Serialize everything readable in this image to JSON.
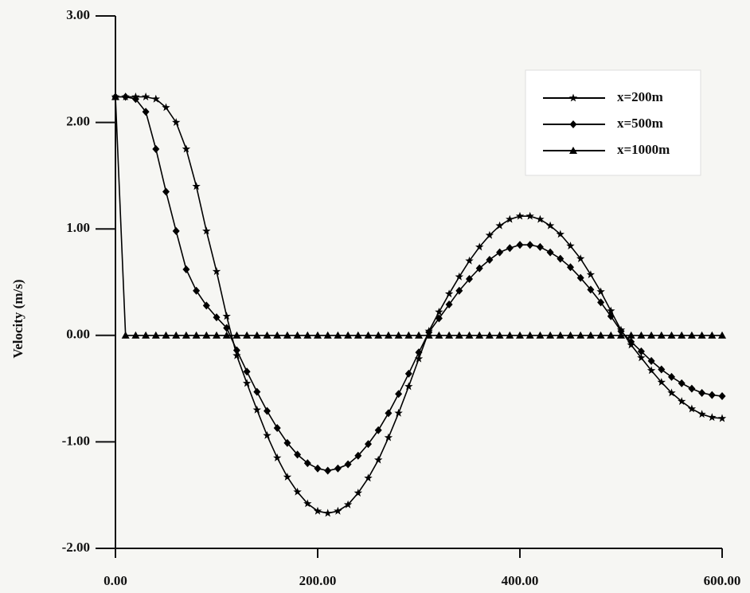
{
  "chart_data": {
    "type": "line",
    "y_label": "Velocity (m/s)",
    "x": [
      0,
      10,
      20,
      30,
      40,
      50,
      60,
      70,
      80,
      90,
      100,
      110,
      120,
      130,
      140,
      150,
      160,
      170,
      180,
      190,
      200,
      210,
      220,
      230,
      240,
      250,
      260,
      270,
      280,
      290,
      300,
      310,
      320,
      330,
      340,
      350,
      360,
      370,
      380,
      390,
      400,
      410,
      420,
      430,
      440,
      450,
      460,
      470,
      480,
      490,
      500,
      510,
      520,
      530,
      540,
      550,
      560,
      570,
      580,
      590,
      600
    ],
    "series": [
      {
        "name": "x=200m",
        "color": "#000000",
        "marker": "star",
        "values": [
          2.24,
          2.24,
          2.24,
          2.24,
          2.22,
          2.14,
          2.0,
          1.75,
          1.4,
          0.98,
          0.6,
          0.18,
          -0.19,
          -0.45,
          -0.7,
          -0.94,
          -1.15,
          -1.33,
          -1.47,
          -1.58,
          -1.65,
          -1.67,
          -1.65,
          -1.59,
          -1.48,
          -1.34,
          -1.17,
          -0.96,
          -0.73,
          -0.48,
          -0.22,
          0.04,
          0.22,
          0.39,
          0.55,
          0.7,
          0.83,
          0.94,
          1.03,
          1.09,
          1.12,
          1.12,
          1.09,
          1.03,
          0.95,
          0.84,
          0.72,
          0.57,
          0.41,
          0.23,
          0.05,
          -0.09,
          -0.21,
          -0.33,
          -0.44,
          -0.54,
          -0.62,
          -0.69,
          -0.74,
          -0.77,
          -0.78
        ]
      },
      {
        "name": "x=500m",
        "color": "#000000",
        "marker": "diamond",
        "values": [
          2.24,
          2.24,
          2.22,
          2.1,
          1.75,
          1.35,
          0.98,
          0.62,
          0.42,
          0.28,
          0.17,
          0.07,
          -0.14,
          -0.34,
          -0.53,
          -0.71,
          -0.87,
          -1.01,
          -1.12,
          -1.2,
          -1.25,
          -1.27,
          -1.25,
          -1.21,
          -1.13,
          -1.02,
          -0.89,
          -0.73,
          -0.55,
          -0.36,
          -0.16,
          0.03,
          0.16,
          0.29,
          0.42,
          0.53,
          0.63,
          0.71,
          0.78,
          0.82,
          0.85,
          0.85,
          0.83,
          0.78,
          0.72,
          0.64,
          0.54,
          0.43,
          0.31,
          0.18,
          0.04,
          -0.06,
          -0.15,
          -0.24,
          -0.32,
          -0.39,
          -0.45,
          -0.5,
          -0.54,
          -0.56,
          -0.57
        ]
      },
      {
        "name": "x=1000m",
        "color": "#000000",
        "marker": "triangle",
        "values": [
          2.24,
          0,
          0,
          0,
          0,
          0,
          0,
          0,
          0,
          0,
          0,
          0,
          0,
          0,
          0,
          0,
          0,
          0,
          0,
          0,
          0,
          0,
          0,
          0,
          0,
          0,
          0,
          0,
          0,
          0,
          0,
          0,
          0,
          0,
          0,
          0,
          0,
          0,
          0,
          0,
          0,
          0,
          0,
          0,
          0,
          0,
          0,
          0,
          0,
          0,
          0,
          0,
          0,
          0,
          0,
          0,
          0,
          0,
          0,
          0,
          0
        ]
      }
    ],
    "xlim": [
      0,
      600
    ],
    "xticks": [
      {
        "value": 0,
        "label": "0.00"
      },
      {
        "value": 200,
        "label": "200.00"
      },
      {
        "value": 400,
        "label": "400.00"
      },
      {
        "value": 600,
        "label": "600.00"
      }
    ],
    "ylim": [
      -2,
      3
    ],
    "yticks": [
      {
        "value": -2,
        "label": "-2.00"
      },
      {
        "value": -1,
        "label": "-1.00"
      },
      {
        "value": 0,
        "label": "0.00"
      },
      {
        "value": 1,
        "label": "1.00"
      },
      {
        "value": 2,
        "label": "2.00"
      },
      {
        "value": 3,
        "label": "3.00"
      }
    ],
    "legend": "upper right"
  }
}
